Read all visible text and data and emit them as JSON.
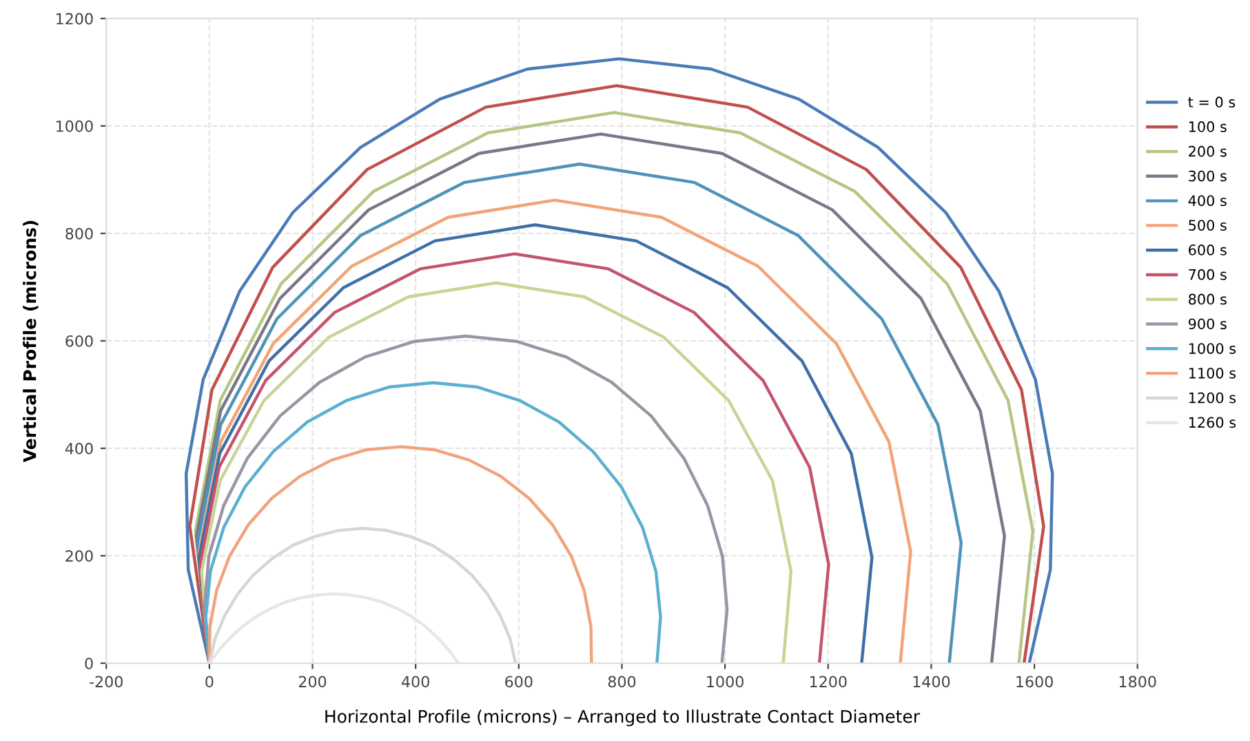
{
  "chart_data": {
    "type": "line",
    "xlabel": "Horizontal Profile (microns) – Arranged to Illustrate Contact Diameter",
    "ylabel": "Vertical Profile (microns)",
    "xlim": [
      -200,
      1800
    ],
    "xticks": [
      -200,
      0,
      200,
      400,
      600,
      800,
      1000,
      1200,
      1400,
      1600,
      1800
    ],
    "ylim": [
      0,
      1200
    ],
    "yticks": [
      0,
      200,
      400,
      600,
      800,
      1000,
      1200
    ],
    "grid": true,
    "legend": "right",
    "series": [
      {
        "name": "t = 0 s",
        "color": "#4a7bb7",
        "x": [
          0,
          -41,
          -45,
          -12,
          59,
          162,
          293,
          447,
          617,
          795,
          973,
          1143,
          1297,
          1428,
          1531,
          1602,
          1635,
          1631,
          1590
        ],
        "values": [
          0,
          174,
          353,
          528,
          693,
          839,
          960,
          1050,
          1106,
          1125,
          1106,
          1050,
          960,
          839,
          693,
          528,
          353,
          174,
          0
        ]
      },
      {
        "name": "100 s",
        "color": "#c0504d",
        "x": [
          0,
          -38,
          5,
          123,
          306,
          536,
          790,
          1044,
          1274,
          1457,
          1575,
          1618,
          1580
        ],
        "values": [
          0,
          255,
          509,
          737,
          919,
          1035,
          1075,
          1035,
          919,
          737,
          509,
          255,
          0
        ]
      },
      {
        "name": "200 s",
        "color": "#b3c785",
        "x": [
          0,
          -27,
          21,
          139,
          318,
          540,
          785,
          1030,
          1252,
          1431,
          1549,
          1597,
          1570
        ],
        "values": [
          0,
          246,
          489,
          706,
          878,
          987,
          1025,
          987,
          878,
          706,
          489,
          246,
          0
        ]
      },
      {
        "name": "300 s",
        "color": "#7a7787",
        "x": [
          0,
          -25,
          22,
          137,
          309,
          523,
          759,
          994,
          1208,
          1380,
          1495,
          1542,
          1517
        ],
        "values": [
          0,
          237,
          470,
          679,
          844,
          949,
          985,
          949,
          844,
          679,
          470,
          237,
          0
        ]
      },
      {
        "name": "400 s",
        "color": "#4f93b8",
        "x": [
          0,
          -23,
          22,
          131,
          293,
          495,
          718,
          940,
          1142,
          1304,
          1413,
          1458,
          1435
        ],
        "values": [
          0,
          224,
          444,
          641,
          796,
          895,
          929,
          895,
          796,
          641,
          444,
          224,
          0
        ]
      },
      {
        "name": "500 s",
        "color": "#f2a477",
        "x": [
          0,
          -20,
          22,
          124,
          276,
          463,
          670,
          877,
          1064,
          1216,
          1318,
          1360,
          1340
        ],
        "values": [
          0,
          208,
          412,
          595,
          739,
          830,
          862,
          830,
          739,
          595,
          412,
          208,
          0
        ]
      },
      {
        "name": "600 s",
        "color": "#3f6fa8",
        "x": [
          0,
          -20,
          20,
          116,
          260,
          437,
          632,
          828,
          1005,
          1149,
          1245,
          1285,
          1265
        ],
        "values": [
          0,
          197,
          390,
          563,
          699,
          786,
          816,
          786,
          699,
          563,
          390,
          197,
          0
        ]
      },
      {
        "name": "700 s",
        "color": "#c4546e",
        "x": [
          0,
          -18,
          19,
          109,
          243,
          409,
          592,
          774,
          940,
          1074,
          1164,
          1201,
          1183
        ],
        "values": [
          0,
          184,
          365,
          526,
          653,
          734,
          762,
          734,
          653,
          526,
          365,
          184,
          0
        ]
      },
      {
        "name": "800 s",
        "color": "#c6d596",
        "x": [
          0,
          -15,
          21,
          106,
          232,
          386,
          556,
          727,
          881,
          1007,
          1092,
          1128,
          1113
        ],
        "values": [
          0,
          171,
          340,
          489,
          607,
          682,
          708,
          682,
          607,
          489,
          340,
          171,
          0
        ]
      },
      {
        "name": "900 s",
        "color": "#9995a3",
        "x": [
          0,
          -10,
          -1,
          28,
          74,
          137,
          214,
          302,
          398,
          497,
          596,
          692,
          780,
          857,
          920,
          966,
          995,
          1004,
          994
        ],
        "values": [
          0,
          99,
          199,
          294,
          382,
          460,
          523,
          570,
          599,
          609,
          599,
          570,
          523,
          460,
          382,
          294,
          199,
          99,
          0
        ]
      },
      {
        "name": "1000 s",
        "color": "#5bb0d0",
        "x": [
          0,
          -7,
          2,
          28,
          69,
          124,
          190,
          266,
          348,
          434,
          520,
          602,
          678,
          744,
          799,
          840,
          866,
          875,
          868
        ],
        "values": [
          0,
          86,
          171,
          253,
          328,
          394,
          449,
          489,
          514,
          522,
          514,
          489,
          449,
          394,
          328,
          253,
          171,
          86,
          0
        ]
      },
      {
        "name": "1100 s",
        "color": "#f0a47e",
        "x": [
          0,
          1,
          14,
          39,
          75,
          121,
          176,
          237,
          303,
          371,
          438,
          504,
          565,
          620,
          666,
          702,
          727,
          740,
          741
        ],
        "values": [
          0,
          68,
          135,
          199,
          257,
          307,
          348,
          378,
          397,
          403,
          397,
          378,
          348,
          307,
          257,
          199,
          135,
          68,
          0
        ]
      },
      {
        "name": "1200 s",
        "color": "#d6d6d6",
        "x": [
          0,
          11,
          30,
          55,
          85,
          121,
          161,
          205,
          250,
          297,
          344,
          389,
          433,
          473,
          509,
          539,
          564,
          583,
          594
        ],
        "values": [
          0,
          46,
          89,
          129,
          164,
          194,
          219,
          236,
          247,
          251,
          247,
          236,
          219,
          194,
          164,
          129,
          89,
          46,
          0
        ]
      },
      {
        "name": "1260 s",
        "color": "#e6e6e6",
        "x": [
          0,
          19,
          41,
          65,
          91,
          119,
          148,
          179,
          210,
          242,
          273,
          304,
          335,
          364,
          392,
          418,
          442,
          464,
          483
        ],
        "values": [
          0,
          25,
          48,
          69,
          87,
          102,
          114,
          122,
          127,
          129,
          127,
          122,
          114,
          102,
          87,
          69,
          48,
          25,
          0
        ]
      }
    ]
  }
}
